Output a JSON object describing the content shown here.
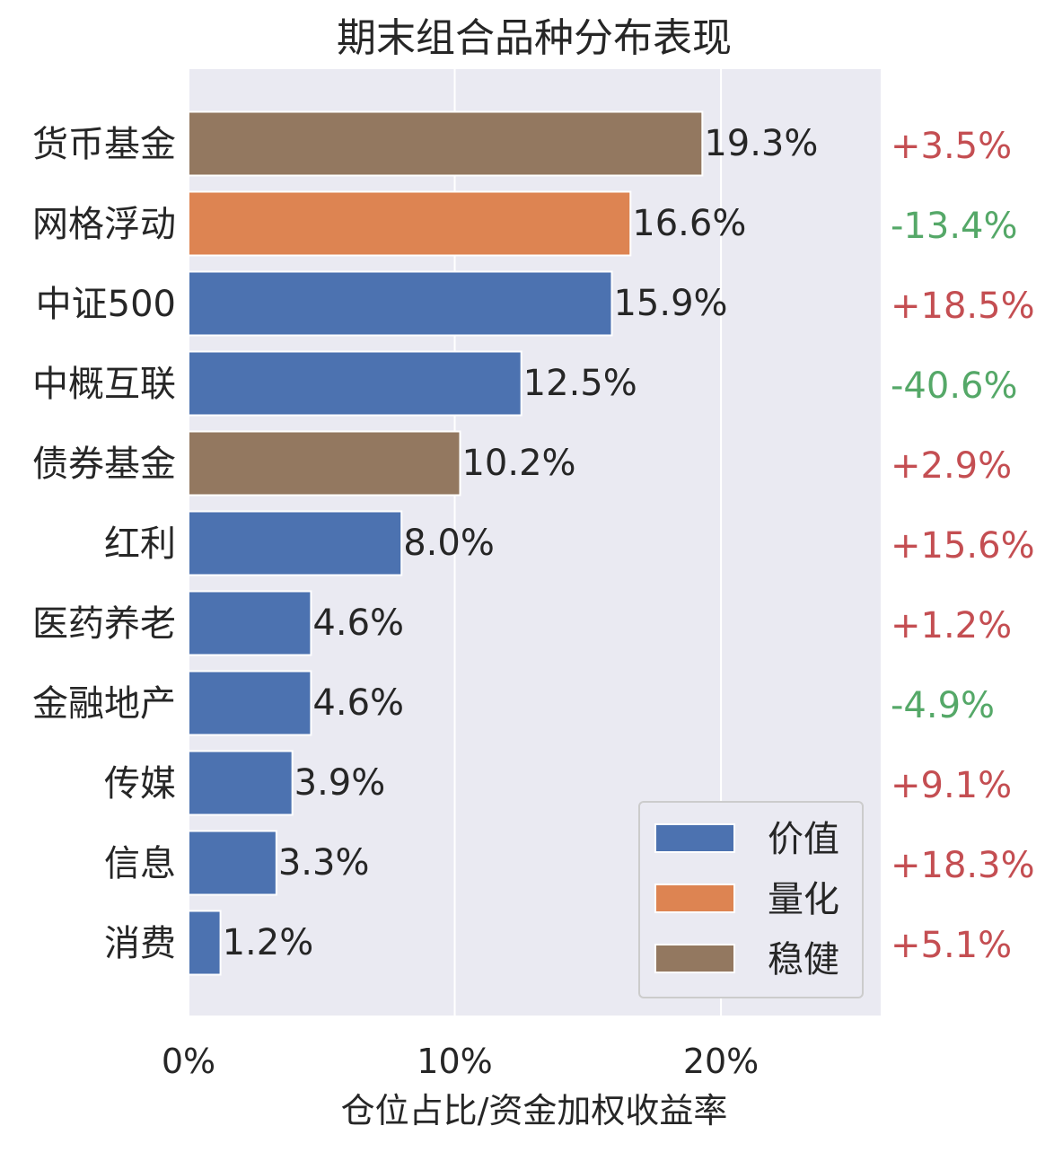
{
  "chart_data": {
    "type": "bar",
    "orientation": "horizontal",
    "title": "期末组合品种分布表现",
    "xlabel": "仓位占比/资金加权收益率",
    "ylabel": "",
    "xlim": [
      0,
      26
    ],
    "xticks": [
      0,
      10,
      20
    ],
    "xtick_labels": [
      "0%",
      "10%",
      "20%"
    ],
    "grid": true,
    "legend_position": "lower-right",
    "legend": [
      {
        "name": "价值",
        "color": "#4c72b0"
      },
      {
        "name": "量化",
        "color": "#dd8452"
      },
      {
        "name": "稳健",
        "color": "#937860"
      }
    ],
    "categories": [
      "货币基金",
      "网格浮动",
      "中证500",
      "中概互联",
      "债券基金",
      "红利",
      "医药养老",
      "金融地产",
      "传媒",
      "信息",
      "消费"
    ],
    "values": [
      19.3,
      16.6,
      15.9,
      12.5,
      10.2,
      8.0,
      4.6,
      4.6,
      3.9,
      3.3,
      1.2
    ],
    "value_labels": [
      "19.3%",
      "16.6%",
      "15.9%",
      "12.5%",
      "10.2%",
      "8.0%",
      "4.6%",
      "4.6%",
      "3.9%",
      "3.3%",
      "1.2%"
    ],
    "groups": [
      "稳健",
      "量化",
      "价值",
      "价值",
      "稳健",
      "价值",
      "价值",
      "价值",
      "价值",
      "价值",
      "价值"
    ],
    "returns": [
      "+3.5%",
      "-13.4%",
      "+18.5%",
      "-40.6%",
      "+2.9%",
      "+15.6%",
      "+1.2%",
      "-4.9%",
      "+9.1%",
      "+18.3%",
      "+5.1%"
    ],
    "return_colors": {
      "positive": "#c44e52",
      "negative": "#55a868"
    },
    "plot_background": "#eaeaf2"
  }
}
